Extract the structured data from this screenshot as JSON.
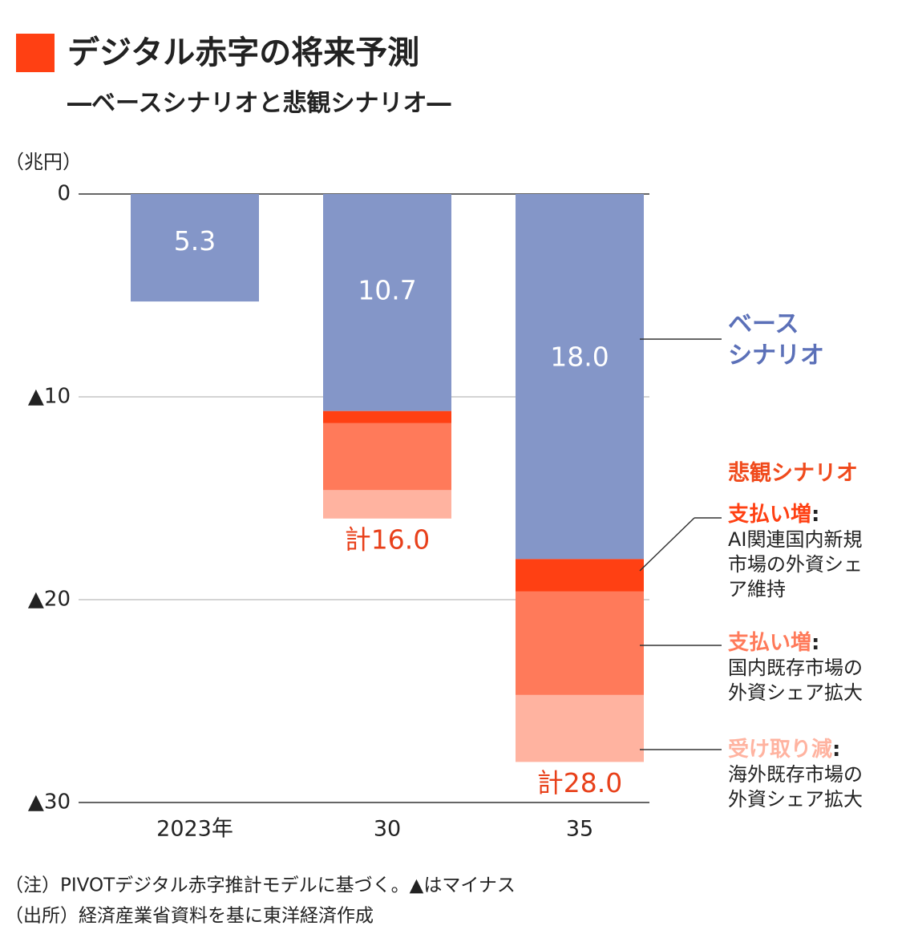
{
  "chart_data": {
    "type": "bar",
    "stacked": true,
    "title": "デジタル赤字の将来予測",
    "subtitle": "―ベースシナリオと悲観シナリオ―",
    "y_label": "（兆円）",
    "categories": [
      "2023年",
      "30",
      "35"
    ],
    "series": [
      {
        "name": "ベース\nシナリオ",
        "color": "#8496c8",
        "values": [
          -5.3,
          -10.7,
          -18.0
        ],
        "value_labels": [
          "5.3",
          "10.7",
          "18.0"
        ]
      },
      {
        "name": "支払い増",
        "description": "AI関連国内新規\n市場の外資シェ\nア維持",
        "color": "#ff4013",
        "values": [
          null,
          -0.6,
          -1.6
        ]
      },
      {
        "name": "支払い増",
        "description": "国内既存市場の\n外資シェア拡大",
        "color": "#ff7a5a",
        "values": [
          null,
          -3.3,
          -5.1
        ]
      },
      {
        "name": "受け取り減",
        "description": "海外既存市場の\n外資シェア拡大",
        "color": "#ffb3a0",
        "values": [
          null,
          -1.4,
          -3.3
        ]
      }
    ],
    "group_label": "悲観シナリオ",
    "legend_separator": ":",
    "totals": [
      null,
      -16.0,
      -28.0
    ],
    "total_labels": [
      null,
      "計16.0",
      "計28.0"
    ],
    "ylim": [
      -30,
      0
    ],
    "yticks": [
      0,
      {
        "value": -10,
        "label": "▲10"
      },
      {
        "value": -20,
        "label": "▲20"
      },
      {
        "value": -30,
        "label": "▲30"
      }
    ],
    "grid": true,
    "notes": [
      "（注）PIVOTデジタル赤字推計モデルに基づく。▲はマイナス",
      "（出所）経済産業省資料を基に東洋経済作成"
    ]
  }
}
